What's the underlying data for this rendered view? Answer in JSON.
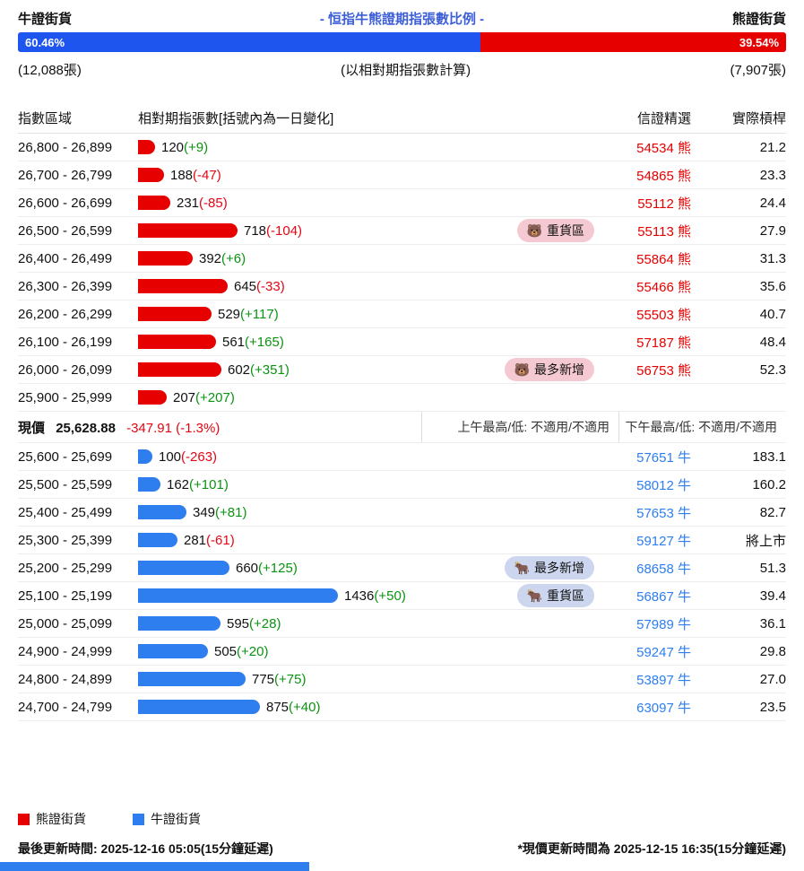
{
  "header": {
    "left_label": "牛證街貨",
    "title": "- 恒指牛熊證期指張數比例 -",
    "right_label": "熊證街貨",
    "bull_pct": "60.46%",
    "bear_pct": "39.54%",
    "bull_pct_value": 60.46,
    "bear_pct_value": 39.54,
    "bull_total": "(12,088張)",
    "calc_note": "(以相對期指張數計算)",
    "bear_total": "(7,907張)"
  },
  "table": {
    "col_range": "指數區域",
    "col_contracts": "相對期指張數[括號內為一日變化]",
    "col_pick": "信證精選",
    "col_leverage": "實際槓桿"
  },
  "bear_rows": [
    {
      "range": "26,800 - 26,899",
      "value": 120,
      "change": "(+9)",
      "code": "54534",
      "suffix": "熊",
      "leverage": "21.2"
    },
    {
      "range": "26,700 - 26,799",
      "value": 188,
      "change": "(-47)",
      "code": "54865",
      "suffix": "熊",
      "leverage": "23.3"
    },
    {
      "range": "26,600 - 26,699",
      "value": 231,
      "change": "(-85)",
      "code": "55112",
      "suffix": "熊",
      "leverage": "24.4"
    },
    {
      "range": "26,500 - 26,599",
      "value": 718,
      "change": "(-104)",
      "badge": {
        "icon": "🐻",
        "label": "重貨區"
      },
      "code": "55113",
      "suffix": "熊",
      "leverage": "27.9"
    },
    {
      "range": "26,400 - 26,499",
      "value": 392,
      "change": "(+6)",
      "code": "55864",
      "suffix": "熊",
      "leverage": "31.3"
    },
    {
      "range": "26,300 - 26,399",
      "value": 645,
      "change": "(-33)",
      "code": "55466",
      "suffix": "熊",
      "leverage": "35.6"
    },
    {
      "range": "26,200 - 26,299",
      "value": 529,
      "change": "(+117)",
      "code": "55503",
      "suffix": "熊",
      "leverage": "40.7"
    },
    {
      "range": "26,100 - 26,199",
      "value": 561,
      "change": "(+165)",
      "code": "57187",
      "suffix": "熊",
      "leverage": "48.4"
    },
    {
      "range": "26,000 - 26,099",
      "value": 602,
      "change": "(+351)",
      "badge": {
        "icon": "🐻",
        "label": "最多新增"
      },
      "code": "56753",
      "suffix": "熊",
      "leverage": "52.3"
    },
    {
      "range": "25,900 - 25,999",
      "value": 207,
      "change": "(+207)",
      "code": "",
      "suffix": "",
      "leverage": ""
    }
  ],
  "price_row": {
    "label": "現價",
    "price": "25,628.88",
    "change": "-347.91 (-1.3%)",
    "am": "上午最高/低: 不適用/不適用",
    "pm": "下午最高/低: 不適用/不適用"
  },
  "bull_rows": [
    {
      "range": "25,600 - 25,699",
      "value": 100,
      "change": "(-263)",
      "code": "57651",
      "suffix": "牛",
      "leverage": "183.1"
    },
    {
      "range": "25,500 - 25,599",
      "value": 162,
      "change": "(+101)",
      "code": "58012",
      "suffix": "牛",
      "leverage": "160.2"
    },
    {
      "range": "25,400 - 25,499",
      "value": 349,
      "change": "(+81)",
      "code": "57653",
      "suffix": "牛",
      "leverage": "82.7"
    },
    {
      "range": "25,300 - 25,399",
      "value": 281,
      "change": "(-61)",
      "code": "59127",
      "suffix": "牛",
      "leverage": "將上市"
    },
    {
      "range": "25,200 - 25,299",
      "value": 660,
      "change": "(+125)",
      "badge": {
        "icon": "🐂",
        "label": "最多新增"
      },
      "code": "68658",
      "suffix": "牛",
      "leverage": "51.3"
    },
    {
      "range": "25,100 - 25,199",
      "value": 1436,
      "change": "(+50)",
      "badge": {
        "icon": "🐂",
        "label": "重貨區"
      },
      "code": "56867",
      "suffix": "牛",
      "leverage": "39.4"
    },
    {
      "range": "25,000 - 25,099",
      "value": 595,
      "change": "(+28)",
      "code": "57989",
      "suffix": "牛",
      "leverage": "36.1"
    },
    {
      "range": "24,900 - 24,999",
      "value": 505,
      "change": "(+20)",
      "code": "59247",
      "suffix": "牛",
      "leverage": "29.8"
    },
    {
      "range": "24,800 - 24,899",
      "value": 775,
      "change": "(+75)",
      "code": "53897",
      "suffix": "牛",
      "leverage": "27.0"
    },
    {
      "range": "24,700 - 24,799",
      "value": 875,
      "change": "(+40)",
      "code": "63097",
      "suffix": "牛",
      "leverage": "23.5"
    }
  ],
  "legend": [
    {
      "label": "熊證街貨",
      "color": "#e60000"
    },
    {
      "label": "牛證街貨",
      "color": "#2e7ef0"
    }
  ],
  "footer": {
    "left": "最後更新時間: 2025-12-16 05:05(15分鐘延遲)",
    "right": "*現價更新時間為 2025-12-15 16:35(15分鐘延遲)"
  },
  "chart_data": {
    "type": "bar",
    "orientation": "horizontal",
    "title": "- 恒指牛熊證期指張數比例 -",
    "bull_bear_ratio": {
      "bull_pct": 60.46,
      "bear_pct": 39.54,
      "bull_contracts": 12088,
      "bear_contracts": 7907,
      "note": "(以相對期指張數計算)"
    },
    "series": [
      {
        "name": "熊證街貨",
        "color": "#e60000",
        "categories": [
          "26,800 - 26,899",
          "26,700 - 26,799",
          "26,600 - 26,699",
          "26,500 - 26,599",
          "26,400 - 26,499",
          "26,300 - 26,399",
          "26,200 - 26,299",
          "26,100 - 26,199",
          "26,000 - 26,099",
          "25,900 - 25,999"
        ],
        "values": [
          120,
          188,
          231,
          718,
          392,
          645,
          529,
          561,
          602,
          207
        ],
        "one_day_change": [
          9,
          -47,
          -85,
          -104,
          6,
          -33,
          117,
          165,
          351,
          207
        ],
        "picked_codes": [
          "54534",
          "54865",
          "55112",
          "55113",
          "55864",
          "55466",
          "55503",
          "57187",
          "56753",
          ""
        ],
        "actual_leverage": [
          "21.2",
          "23.3",
          "24.4",
          "27.9",
          "31.3",
          "35.6",
          "40.7",
          "48.4",
          "52.3",
          ""
        ]
      },
      {
        "name": "牛證街貨",
        "color": "#2e7ef0",
        "categories": [
          "25,600 - 25,699",
          "25,500 - 25,599",
          "25,400 - 25,499",
          "25,300 - 25,399",
          "25,200 - 25,299",
          "25,100 - 25,199",
          "25,000 - 25,099",
          "24,900 - 24,999",
          "24,800 - 24,899",
          "24,700 - 24,799"
        ],
        "values": [
          100,
          162,
          349,
          281,
          660,
          1436,
          595,
          505,
          775,
          875
        ],
        "one_day_change": [
          -263,
          101,
          81,
          -61,
          125,
          50,
          28,
          20,
          75,
          40
        ],
        "picked_codes": [
          "57651",
          "58012",
          "57653",
          "59127",
          "68658",
          "56867",
          "57989",
          "59247",
          "53897",
          "63097"
        ],
        "actual_leverage": [
          "183.1",
          "160.2",
          "82.7",
          "將上市",
          "51.3",
          "39.4",
          "36.1",
          "29.8",
          "27.0",
          "23.5"
        ]
      }
    ],
    "annotations": [
      {
        "range": "26,500 - 26,599",
        "label": "重貨區",
        "side": "bear"
      },
      {
        "range": "26,000 - 26,099",
        "label": "最多新增",
        "side": "bear"
      },
      {
        "range": "25,200 - 25,299",
        "label": "最多新增",
        "side": "bull"
      },
      {
        "range": "25,100 - 25,199",
        "label": "重貨區",
        "side": "bull"
      }
    ],
    "current_price": 25628.88,
    "price_change": -347.91,
    "price_change_pct": -1.3
  }
}
